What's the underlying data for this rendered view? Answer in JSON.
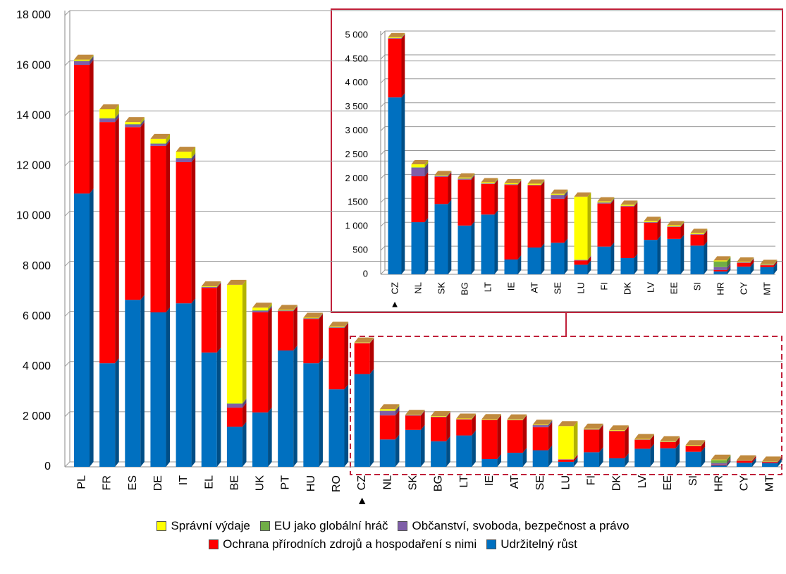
{
  "chart_data": [
    {
      "type": "bar",
      "stacked": true,
      "three_d": true,
      "categories": [
        "PL",
        "FR",
        "ES",
        "DE",
        "IT",
        "EL",
        "BE",
        "UK",
        "PT",
        "HU",
        "RO",
        "CZ",
        "NL",
        "SK",
        "BG",
        "LT",
        "IE",
        "AT",
        "SE",
        "LU",
        "FI",
        "DK",
        "LV",
        "EE",
        "SI",
        "HR",
        "CY",
        "MT"
      ],
      "series": [
        {
          "name": "Udržitelný růst",
          "color": "#0070c0",
          "values": [
            10900,
            4130,
            6660,
            6160,
            6520,
            4560,
            1600,
            2170,
            4640,
            4130,
            3090,
            3700,
            1090,
            1470,
            1020,
            1250,
            310,
            560,
            660,
            200,
            580,
            340,
            720,
            740,
            600,
            60,
            160,
            150
          ]
        },
        {
          "name": "Ochrana přírodních zdrojů a hospodaření s nimi",
          "color": "#ff0000",
          "values": [
            5130,
            9620,
            6890,
            6640,
            5630,
            2580,
            760,
            3990,
            1570,
            1770,
            2450,
            1230,
            960,
            570,
            960,
            640,
            1560,
            1300,
            920,
            90,
            900,
            1080,
            360,
            250,
            230,
            30,
            80,
            40
          ]
        },
        {
          "name": "Občanství, svoboda, bezpečnost a právo",
          "color": "#7f5fa8",
          "values": [
            150,
            140,
            100,
            80,
            150,
            30,
            150,
            60,
            20,
            20,
            20,
            10,
            180,
            20,
            20,
            10,
            10,
            10,
            80,
            10,
            20,
            10,
            10,
            10,
            10,
            60,
            10,
            10
          ]
        },
        {
          "name": "EU jako globální hráč",
          "color": "#70ad47",
          "values": [
            20,
            20,
            20,
            20,
            20,
            10,
            20,
            30,
            10,
            10,
            10,
            5,
            10,
            5,
            5,
            5,
            5,
            5,
            5,
            5,
            5,
            5,
            5,
            5,
            5,
            120,
            5,
            5
          ]
        },
        {
          "name": "Správní výdaje",
          "color": "#ffff00",
          "values": [
            40,
            350,
            80,
            180,
            250,
            20,
            4730,
            100,
            20,
            20,
            20,
            15,
            60,
            10,
            20,
            20,
            20,
            20,
            20,
            1320,
            20,
            20,
            20,
            20,
            20,
            20,
            10,
            10
          ]
        }
      ],
      "ylim": [
        0,
        18000
      ],
      "yticks": [
        0,
        {
          "value": 2000,
          "label": "2 000"
        },
        {
          "value": 4000,
          "label": "4 000"
        },
        {
          "value": 6000,
          "label": "6 000"
        },
        {
          "value": 8000,
          "label": "8 000"
        },
        {
          "value": 10000,
          "label": "10 000"
        },
        {
          "value": 12000,
          "label": "12 000"
        },
        {
          "value": 14000,
          "label": "14 000"
        },
        {
          "value": 16000,
          "label": "16 000"
        },
        {
          "value": 18000,
          "label": "18 000"
        }
      ],
      "grid": true,
      "marker": "▲",
      "marker_category": 11,
      "legend": "bottom"
    },
    {
      "type": "bar",
      "stacked": true,
      "three_d": true,
      "categories": [
        "CZ",
        "NL",
        "SK",
        "BG",
        "LT",
        "IE",
        "AT",
        "SE",
        "LU",
        "FI",
        "DK",
        "LV",
        "EE",
        "SI",
        "HR",
        "CY",
        "MT"
      ],
      "series": [
        {
          "color": "#0070c0",
          "values": [
            3700,
            1090,
            1470,
            1020,
            1250,
            310,
            560,
            660,
            200,
            580,
            340,
            720,
            740,
            600,
            60,
            160,
            150
          ]
        },
        {
          "color": "#ff0000",
          "values": [
            1230,
            960,
            570,
            960,
            640,
            1560,
            1300,
            920,
            90,
            900,
            1080,
            360,
            250,
            230,
            30,
            80,
            40
          ]
        },
        {
          "color": "#7f5fa8",
          "values": [
            10,
            180,
            20,
            20,
            10,
            10,
            10,
            80,
            10,
            20,
            10,
            10,
            10,
            10,
            60,
            10,
            10
          ]
        },
        {
          "color": "#70ad47",
          "values": [
            5,
            10,
            5,
            5,
            5,
            5,
            5,
            5,
            5,
            5,
            5,
            5,
            5,
            5,
            120,
            5,
            5
          ]
        },
        {
          "color": "#ffff00",
          "values": [
            15,
            60,
            10,
            20,
            20,
            20,
            20,
            20,
            1320,
            20,
            20,
            20,
            20,
            20,
            20,
            10,
            10
          ]
        }
      ],
      "ylim": [
        0,
        5000
      ],
      "yticks": [
        0,
        500,
        {
          "value": 1000,
          "label": "1 000"
        },
        {
          "value": 1500,
          "label": "1500"
        },
        {
          "value": 2000,
          "label": "2 000"
        },
        {
          "value": 2500,
          "label": "2 500"
        },
        {
          "value": 3000,
          "label": "3 000"
        },
        {
          "value": 3500,
          "label": "3 500"
        },
        {
          "value": 4000,
          "label": "4 000"
        },
        {
          "value": 4500,
          "label": "4 500"
        },
        {
          "value": 5000,
          "label": "5 000"
        }
      ],
      "grid": true,
      "marker": "▲",
      "marker_category": 0
    }
  ]
}
